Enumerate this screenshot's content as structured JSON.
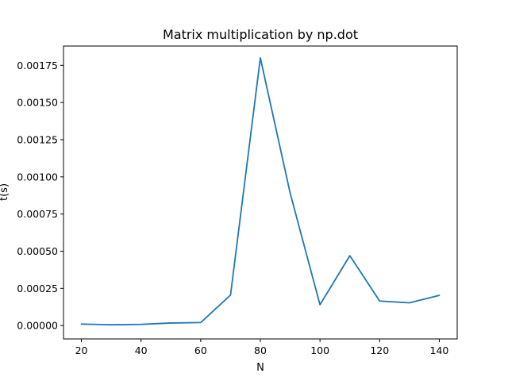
{
  "chart_data": {
    "type": "line",
    "title": "Matrix multiplication by np.dot",
    "xlabel": "N",
    "ylabel": "t(s)",
    "xlim": [
      14,
      146
    ],
    "ylim": [
      -9e-05,
      0.00188
    ],
    "x_ticks": [
      20,
      40,
      60,
      80,
      100,
      120,
      140
    ],
    "x_tick_labels": [
      "20",
      "40",
      "60",
      "80",
      "100",
      "120",
      "140"
    ],
    "y_ticks": [
      0,
      0.00025,
      0.0005,
      0.00075,
      0.001,
      0.00125,
      0.0015,
      0.00175
    ],
    "y_tick_labels": [
      "0.00000",
      "0.00025",
      "0.00050",
      "0.00075",
      "0.00100",
      "0.00125",
      "0.00150",
      "0.00175"
    ],
    "grid": false,
    "series": [
      {
        "color": "#1f77b4",
        "x": [
          20,
          30,
          40,
          50,
          60,
          70,
          80,
          90,
          100,
          110,
          120,
          130,
          140
        ],
        "values": [
          1e-05,
          5e-06,
          8e-06,
          1.7e-05,
          2e-05,
          0.000205,
          0.0018,
          0.00089,
          0.00014,
          0.00047,
          0.000165,
          0.000153,
          0.000203
        ]
      }
    ]
  }
}
